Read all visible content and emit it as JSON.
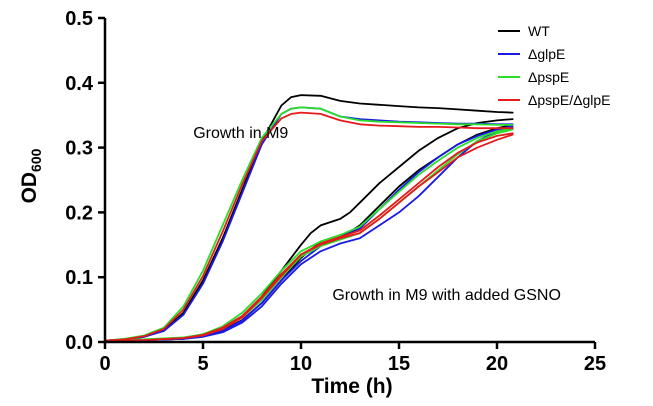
{
  "chart_data": {
    "type": "line",
    "xlabel": "Time (h)",
    "ylabel_main": "OD",
    "ylabel_sub": "600",
    "xlim": [
      0,
      25
    ],
    "ylim": [
      0,
      0.5
    ],
    "x_ticks": [
      "0",
      "5",
      "10",
      "15",
      "20",
      "25"
    ],
    "y_ticks": [
      "0.0",
      "0.1",
      "0.2",
      "0.3",
      "0.4",
      "0.5"
    ],
    "legend_position": "top-right",
    "annotations": [
      {
        "text": "Growth in M9",
        "x": 4.5,
        "y": 0.315
      },
      {
        "text": "Growth in M9 with added GSNO",
        "x": 11.6,
        "y": 0.065
      }
    ],
    "series": [
      {
        "name": "WT",
        "color": "#000000",
        "curves": [
          {
            "x": [
              0,
              1,
              2,
              3,
              4,
              5,
              6,
              7,
              8,
              9,
              9.5,
              10,
              11,
              12,
              13,
              14,
              15,
              16,
              17,
              18,
              19,
              20,
              20.8
            ],
            "y": [
              0.002,
              0.004,
              0.008,
              0.018,
              0.045,
              0.095,
              0.16,
              0.235,
              0.31,
              0.365,
              0.378,
              0.381,
              0.38,
              0.372,
              0.368,
              0.366,
              0.364,
              0.362,
              0.361,
              0.359,
              0.357,
              0.355,
              0.354
            ]
          },
          {
            "x": [
              0,
              2,
              4,
              5,
              6,
              7,
              8,
              9,
              10,
              10.5,
              11,
              11.5,
              12,
              12.5,
              13,
              14,
              15,
              16,
              17,
              18,
              19,
              20,
              20.8
            ],
            "y": [
              0.002,
              0.003,
              0.006,
              0.012,
              0.022,
              0.04,
              0.07,
              0.11,
              0.15,
              0.168,
              0.18,
              0.185,
              0.19,
              0.2,
              0.215,
              0.245,
              0.27,
              0.295,
              0.315,
              0.33,
              0.338,
              0.342,
              0.344
            ]
          },
          {
            "x": [
              0,
              2,
              4,
              5,
              6,
              7,
              8,
              9,
              10,
              11,
              12,
              12.5,
              13,
              14,
              15,
              16,
              17,
              18,
              19,
              20,
              20.8
            ],
            "y": [
              0.002,
              0.003,
              0.005,
              0.009,
              0.018,
              0.034,
              0.06,
              0.095,
              0.13,
              0.155,
              0.165,
              0.17,
              0.18,
              0.21,
              0.24,
              0.265,
              0.285,
              0.305,
              0.32,
              0.33,
              0.335
            ]
          }
        ]
      },
      {
        "name": "ΔglpE",
        "color": "#1a1ae6",
        "curves": [
          {
            "x": [
              0,
              1,
              2,
              3,
              4,
              5,
              6,
              7,
              8,
              9,
              9.5,
              10,
              11,
              12,
              13,
              14,
              15,
              16,
              17,
              18,
              19,
              20,
              20.8
            ],
            "y": [
              0.002,
              0.004,
              0.008,
              0.017,
              0.042,
              0.09,
              0.155,
              0.23,
              0.305,
              0.352,
              0.36,
              0.362,
              0.36,
              0.348,
              0.344,
              0.342,
              0.34,
              0.339,
              0.338,
              0.337,
              0.337,
              0.336,
              0.336
            ]
          },
          {
            "x": [
              0,
              2,
              4,
              5,
              6,
              7,
              8,
              9,
              10,
              11,
              12,
              13,
              14,
              15,
              16,
              17,
              18,
              19,
              20,
              20.8
            ],
            "y": [
              0.002,
              0.003,
              0.005,
              0.008,
              0.015,
              0.03,
              0.055,
              0.09,
              0.12,
              0.14,
              0.152,
              0.16,
              0.18,
              0.2,
              0.225,
              0.255,
              0.285,
              0.31,
              0.325,
              0.335
            ]
          },
          {
            "x": [
              0,
              2,
              4,
              5,
              6,
              7,
              8,
              9,
              10,
              11,
              12,
              13,
              14,
              15,
              16,
              17,
              18,
              19,
              20,
              20.8
            ],
            "y": [
              0.002,
              0.003,
              0.005,
              0.009,
              0.017,
              0.033,
              0.06,
              0.095,
              0.125,
              0.148,
              0.162,
              0.175,
              0.205,
              0.235,
              0.262,
              0.285,
              0.305,
              0.318,
              0.328,
              0.332
            ]
          }
        ]
      },
      {
        "name": "ΔpspE",
        "color": "#2adf2a",
        "curves": [
          {
            "x": [
              0,
              1,
              2,
              3,
              4,
              5,
              6,
              7,
              8,
              9,
              9.5,
              10,
              11,
              12,
              13,
              14,
              15,
              16,
              17,
              18,
              19,
              20,
              20.8
            ],
            "y": [
              0.002,
              0.005,
              0.01,
              0.022,
              0.055,
              0.11,
              0.18,
              0.25,
              0.315,
              0.352,
              0.36,
              0.362,
              0.36,
              0.348,
              0.342,
              0.34,
              0.339,
              0.338,
              0.337,
              0.336,
              0.336,
              0.335,
              0.335
            ]
          },
          {
            "x": [
              0,
              2,
              4,
              5,
              6,
              7,
              8,
              9,
              10,
              11,
              12,
              13,
              14,
              15,
              16,
              17,
              18,
              19,
              20,
              20.8
            ],
            "y": [
              0.002,
              0.004,
              0.007,
              0.012,
              0.024,
              0.045,
              0.075,
              0.11,
              0.14,
              0.155,
              0.165,
              0.178,
              0.205,
              0.232,
              0.258,
              0.28,
              0.3,
              0.315,
              0.325,
              0.33
            ]
          },
          {
            "x": [
              0,
              2,
              4,
              5,
              6,
              7,
              8,
              9,
              10,
              11,
              12,
              13,
              14,
              15,
              16,
              17,
              18,
              19,
              20,
              20.8
            ],
            "y": [
              0.002,
              0.004,
              0.007,
              0.011,
              0.02,
              0.038,
              0.065,
              0.1,
              0.132,
              0.148,
              0.158,
              0.168,
              0.19,
              0.215,
              0.24,
              0.265,
              0.29,
              0.31,
              0.322,
              0.328
            ]
          }
        ]
      },
      {
        "name": "ΔpspE/ΔglpE",
        "color": "#e61a1a",
        "curves": [
          {
            "x": [
              0,
              1,
              2,
              3,
              4,
              5,
              6,
              7,
              8,
              9,
              9.5,
              10,
              11,
              12,
              13,
              14,
              15,
              16,
              17,
              18,
              19,
              20,
              20.8
            ],
            "y": [
              0.002,
              0.004,
              0.009,
              0.02,
              0.05,
              0.102,
              0.17,
              0.243,
              0.31,
              0.345,
              0.352,
              0.354,
              0.352,
              0.342,
              0.336,
              0.334,
              0.333,
              0.332,
              0.332,
              0.331,
              0.33,
              0.33,
              0.33
            ]
          },
          {
            "x": [
              0,
              2,
              4,
              5,
              6,
              7,
              8,
              9,
              10,
              11,
              12,
              13,
              14,
              15,
              16,
              17,
              18,
              19,
              20,
              20.8
            ],
            "y": [
              0.002,
              0.003,
              0.006,
              0.01,
              0.02,
              0.038,
              0.068,
              0.102,
              0.135,
              0.15,
              0.16,
              0.168,
              0.19,
              0.215,
              0.24,
              0.262,
              0.285,
              0.3,
              0.312,
              0.32
            ]
          },
          {
            "x": [
              0,
              2,
              4,
              5,
              6,
              7,
              8,
              9,
              10,
              11,
              12,
              13,
              14,
              15,
              16,
              17,
              18,
              19,
              20,
              20.8
            ],
            "y": [
              0.002,
              0.003,
              0.006,
              0.011,
              0.022,
              0.04,
              0.07,
              0.105,
              0.135,
              0.152,
              0.162,
              0.172,
              0.195,
              0.22,
              0.245,
              0.27,
              0.292,
              0.308,
              0.318,
              0.322
            ]
          }
        ]
      }
    ]
  }
}
